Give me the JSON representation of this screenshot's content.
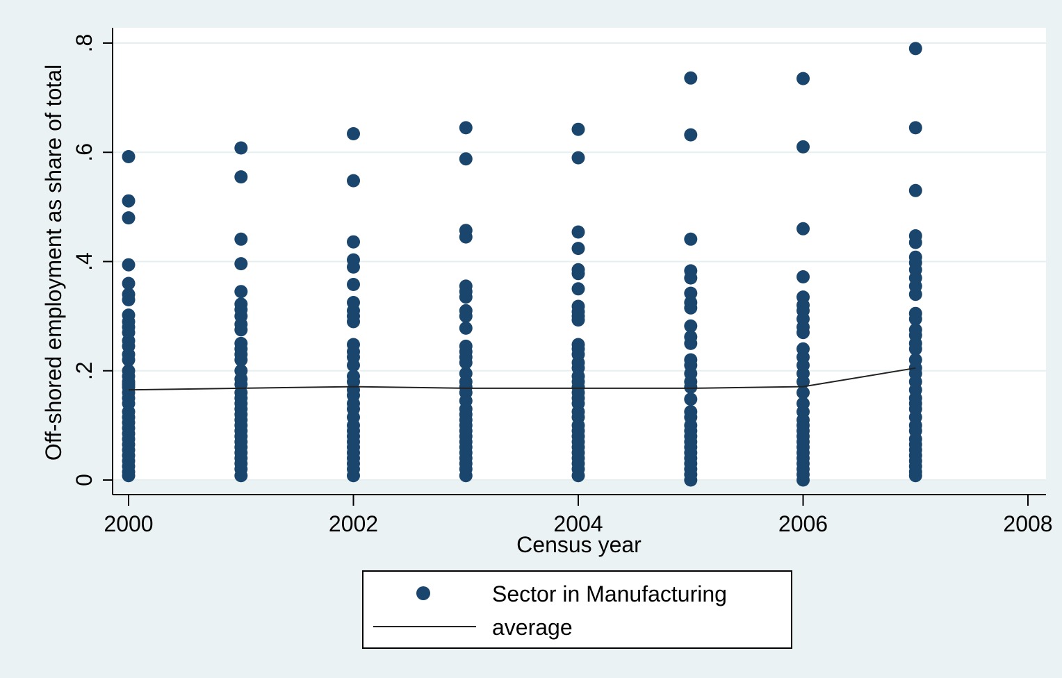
{
  "chart_data": {
    "type": "scatter",
    "xlabel": "Census year",
    "ylabel": "Off-shored employment as share of total",
    "xlim": [
      2000,
      2008
    ],
    "ylim": [
      0,
      0.8
    ],
    "x_ticks": [
      {
        "value": 2000,
        "label": "2000"
      },
      {
        "value": 2002,
        "label": "2002"
      },
      {
        "value": 2004,
        "label": "2004"
      },
      {
        "value": 2006,
        "label": "2006"
      },
      {
        "value": 2008,
        "label": "2008"
      }
    ],
    "y_ticks": [
      {
        "value": 0,
        "label": "0"
      },
      {
        "value": 0.2,
        "label": ".2"
      },
      {
        "value": 0.4,
        "label": ".4"
      },
      {
        "value": 0.6,
        "label": ".6"
      },
      {
        "value": 0.8,
        "label": ".8"
      }
    ],
    "grid": true,
    "legend_position": "bottom",
    "colors": {
      "background": "#eaf2f3",
      "plot_area": "#ffffff",
      "marker": "#1a466e",
      "line": "#222222",
      "grid": "#e6eff0"
    },
    "series": [
      {
        "name": "Sector in Manufacturing",
        "type": "scatter",
        "points": [
          [
            2000,
            0.592
          ],
          [
            2000,
            0.511
          ],
          [
            2000,
            0.48
          ],
          [
            2000,
            0.394
          ],
          [
            2000,
            0.36
          ],
          [
            2000,
            0.34
          ],
          [
            2000,
            0.33
          ],
          [
            2000,
            0.302
          ],
          [
            2000,
            0.29
          ],
          [
            2000,
            0.28
          ],
          [
            2000,
            0.27
          ],
          [
            2000,
            0.255
          ],
          [
            2000,
            0.245
          ],
          [
            2000,
            0.23
          ],
          [
            2000,
            0.22
          ],
          [
            2000,
            0.2
          ],
          [
            2000,
            0.19
          ],
          [
            2000,
            0.18
          ],
          [
            2000,
            0.175
          ],
          [
            2000,
            0.17
          ],
          [
            2000,
            0.16
          ],
          [
            2000,
            0.15
          ],
          [
            2000,
            0.14
          ],
          [
            2000,
            0.125
          ],
          [
            2000,
            0.115
          ],
          [
            2000,
            0.105
          ],
          [
            2000,
            0.095
          ],
          [
            2000,
            0.085
          ],
          [
            2000,
            0.075
          ],
          [
            2000,
            0.065
          ],
          [
            2000,
            0.055
          ],
          [
            2000,
            0.045
          ],
          [
            2000,
            0.035
          ],
          [
            2000,
            0.025
          ],
          [
            2000,
            0.015
          ],
          [
            2000,
            0.008
          ],
          [
            2001,
            0.608
          ],
          [
            2001,
            0.555
          ],
          [
            2001,
            0.441
          ],
          [
            2001,
            0.396
          ],
          [
            2001,
            0.345
          ],
          [
            2001,
            0.322
          ],
          [
            2001,
            0.312
          ],
          [
            2001,
            0.3
          ],
          [
            2001,
            0.285
          ],
          [
            2001,
            0.275
          ],
          [
            2001,
            0.25
          ],
          [
            2001,
            0.24
          ],
          [
            2001,
            0.23
          ],
          [
            2001,
            0.22
          ],
          [
            2001,
            0.2
          ],
          [
            2001,
            0.185
          ],
          [
            2001,
            0.175
          ],
          [
            2001,
            0.16
          ],
          [
            2001,
            0.15
          ],
          [
            2001,
            0.14
          ],
          [
            2001,
            0.13
          ],
          [
            2001,
            0.12
          ],
          [
            2001,
            0.11
          ],
          [
            2001,
            0.1
          ],
          [
            2001,
            0.09
          ],
          [
            2001,
            0.08
          ],
          [
            2001,
            0.07
          ],
          [
            2001,
            0.06
          ],
          [
            2001,
            0.05
          ],
          [
            2001,
            0.04
          ],
          [
            2001,
            0.03
          ],
          [
            2001,
            0.02
          ],
          [
            2001,
            0.008
          ],
          [
            2002,
            0.634
          ],
          [
            2002,
            0.548
          ],
          [
            2002,
            0.436
          ],
          [
            2002,
            0.403
          ],
          [
            2002,
            0.39
          ],
          [
            2002,
            0.358
          ],
          [
            2002,
            0.325
          ],
          [
            2002,
            0.31
          ],
          [
            2002,
            0.3
          ],
          [
            2002,
            0.29
          ],
          [
            2002,
            0.248
          ],
          [
            2002,
            0.235
          ],
          [
            2002,
            0.225
          ],
          [
            2002,
            0.21
          ],
          [
            2002,
            0.19
          ],
          [
            2002,
            0.18
          ],
          [
            2002,
            0.165
          ],
          [
            2002,
            0.155
          ],
          [
            2002,
            0.14
          ],
          [
            2002,
            0.13
          ],
          [
            2002,
            0.115
          ],
          [
            2002,
            0.1
          ],
          [
            2002,
            0.09
          ],
          [
            2002,
            0.08
          ],
          [
            2002,
            0.07
          ],
          [
            2002,
            0.06
          ],
          [
            2002,
            0.05
          ],
          [
            2002,
            0.04
          ],
          [
            2002,
            0.03
          ],
          [
            2002,
            0.02
          ],
          [
            2002,
            0.008
          ],
          [
            2003,
            0.645
          ],
          [
            2003,
            0.588
          ],
          [
            2003,
            0.457
          ],
          [
            2003,
            0.445
          ],
          [
            2003,
            0.355
          ],
          [
            2003,
            0.345
          ],
          [
            2003,
            0.335
          ],
          [
            2003,
            0.31
          ],
          [
            2003,
            0.3
          ],
          [
            2003,
            0.278
          ],
          [
            2003,
            0.245
          ],
          [
            2003,
            0.235
          ],
          [
            2003,
            0.225
          ],
          [
            2003,
            0.215
          ],
          [
            2003,
            0.195
          ],
          [
            2003,
            0.18
          ],
          [
            2003,
            0.17
          ],
          [
            2003,
            0.16
          ],
          [
            2003,
            0.145
          ],
          [
            2003,
            0.13
          ],
          [
            2003,
            0.12
          ],
          [
            2003,
            0.11
          ],
          [
            2003,
            0.1
          ],
          [
            2003,
            0.09
          ],
          [
            2003,
            0.08
          ],
          [
            2003,
            0.07
          ],
          [
            2003,
            0.06
          ],
          [
            2003,
            0.05
          ],
          [
            2003,
            0.04
          ],
          [
            2003,
            0.03
          ],
          [
            2003,
            0.02
          ],
          [
            2003,
            0.008
          ],
          [
            2004,
            0.642
          ],
          [
            2004,
            0.59
          ],
          [
            2004,
            0.454
          ],
          [
            2004,
            0.424
          ],
          [
            2004,
            0.385
          ],
          [
            2004,
            0.378
          ],
          [
            2004,
            0.35
          ],
          [
            2004,
            0.318
          ],
          [
            2004,
            0.308
          ],
          [
            2004,
            0.3
          ],
          [
            2004,
            0.293
          ],
          [
            2004,
            0.248
          ],
          [
            2004,
            0.24
          ],
          [
            2004,
            0.23
          ],
          [
            2004,
            0.215
          ],
          [
            2004,
            0.205
          ],
          [
            2004,
            0.19
          ],
          [
            2004,
            0.18
          ],
          [
            2004,
            0.17
          ],
          [
            2004,
            0.16
          ],
          [
            2004,
            0.15
          ],
          [
            2004,
            0.14
          ],
          [
            2004,
            0.125
          ],
          [
            2004,
            0.115
          ],
          [
            2004,
            0.1
          ],
          [
            2004,
            0.09
          ],
          [
            2004,
            0.08
          ],
          [
            2004,
            0.07
          ],
          [
            2004,
            0.06
          ],
          [
            2004,
            0.05
          ],
          [
            2004,
            0.04
          ],
          [
            2004,
            0.03
          ],
          [
            2004,
            0.02
          ],
          [
            2004,
            0.008
          ],
          [
            2005,
            0.736
          ],
          [
            2005,
            0.632
          ],
          [
            2005,
            0.441
          ],
          [
            2005,
            0.383
          ],
          [
            2005,
            0.37
          ],
          [
            2005,
            0.342
          ],
          [
            2005,
            0.325
          ],
          [
            2005,
            0.315
          ],
          [
            2005,
            0.282
          ],
          [
            2005,
            0.262
          ],
          [
            2005,
            0.25
          ],
          [
            2005,
            0.22
          ],
          [
            2005,
            0.21
          ],
          [
            2005,
            0.195
          ],
          [
            2005,
            0.18
          ],
          [
            2005,
            0.17
          ],
          [
            2005,
            0.148
          ],
          [
            2005,
            0.125
          ],
          [
            2005,
            0.115
          ],
          [
            2005,
            0.1
          ],
          [
            2005,
            0.09
          ],
          [
            2005,
            0.08
          ],
          [
            2005,
            0.07
          ],
          [
            2005,
            0.06
          ],
          [
            2005,
            0.05
          ],
          [
            2005,
            0.04
          ],
          [
            2005,
            0.03
          ],
          [
            2005,
            0.02
          ],
          [
            2005,
            0.01
          ],
          [
            2005,
            0.0
          ],
          [
            2006,
            0.735
          ],
          [
            2006,
            0.61
          ],
          [
            2006,
            0.46
          ],
          [
            2006,
            0.372
          ],
          [
            2006,
            0.335
          ],
          [
            2006,
            0.32
          ],
          [
            2006,
            0.31
          ],
          [
            2006,
            0.295
          ],
          [
            2006,
            0.28
          ],
          [
            2006,
            0.27
          ],
          [
            2006,
            0.24
          ],
          [
            2006,
            0.225
          ],
          [
            2006,
            0.21
          ],
          [
            2006,
            0.195
          ],
          [
            2006,
            0.18
          ],
          [
            2006,
            0.16
          ],
          [
            2006,
            0.14
          ],
          [
            2006,
            0.125
          ],
          [
            2006,
            0.11
          ],
          [
            2006,
            0.1
          ],
          [
            2006,
            0.09
          ],
          [
            2006,
            0.08
          ],
          [
            2006,
            0.07
          ],
          [
            2006,
            0.06
          ],
          [
            2006,
            0.05
          ],
          [
            2006,
            0.04
          ],
          [
            2006,
            0.03
          ],
          [
            2006,
            0.02
          ],
          [
            2006,
            0.01
          ],
          [
            2006,
            0.0
          ],
          [
            2007,
            0.79
          ],
          [
            2007,
            0.645
          ],
          [
            2007,
            0.53
          ],
          [
            2007,
            0.447
          ],
          [
            2007,
            0.435
          ],
          [
            2007,
            0.408
          ],
          [
            2007,
            0.398
          ],
          [
            2007,
            0.385
          ],
          [
            2007,
            0.37
          ],
          [
            2007,
            0.355
          ],
          [
            2007,
            0.34
          ],
          [
            2007,
            0.305
          ],
          [
            2007,
            0.295
          ],
          [
            2007,
            0.275
          ],
          [
            2007,
            0.265
          ],
          [
            2007,
            0.25
          ],
          [
            2007,
            0.24
          ],
          [
            2007,
            0.22
          ],
          [
            2007,
            0.205
          ],
          [
            2007,
            0.195
          ],
          [
            2007,
            0.18
          ],
          [
            2007,
            0.165
          ],
          [
            2007,
            0.15
          ],
          [
            2007,
            0.14
          ],
          [
            2007,
            0.13
          ],
          [
            2007,
            0.115
          ],
          [
            2007,
            0.1
          ],
          [
            2007,
            0.09
          ],
          [
            2007,
            0.075
          ],
          [
            2007,
            0.065
          ],
          [
            2007,
            0.055
          ],
          [
            2007,
            0.045
          ],
          [
            2007,
            0.035
          ],
          [
            2007,
            0.025
          ],
          [
            2007,
            0.015
          ],
          [
            2007,
            0.008
          ]
        ]
      },
      {
        "name": "average",
        "type": "line",
        "x": [
          2000,
          2001,
          2002,
          2003,
          2004,
          2005,
          2006,
          2007
        ],
        "values": [
          0.165,
          0.168,
          0.171,
          0.168,
          0.168,
          0.168,
          0.171,
          0.205
        ]
      }
    ]
  }
}
